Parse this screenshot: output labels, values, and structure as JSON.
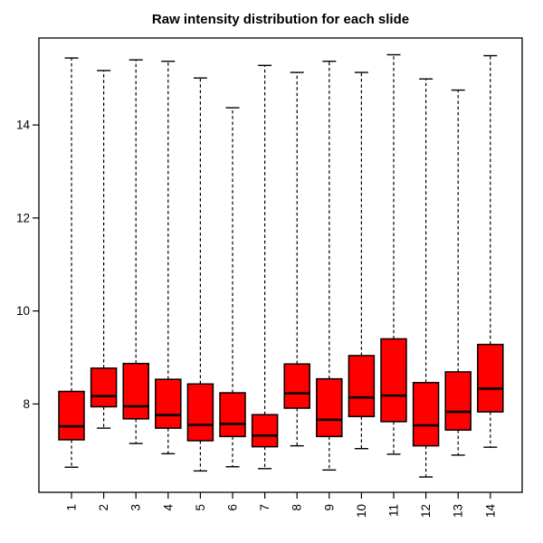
{
  "figure": {
    "background": "#FFFFFF",
    "border_color": "#000000"
  },
  "chart_data": {
    "type": "boxplot",
    "title": "Raw intensity distribution for each slide",
    "xlabel": "",
    "ylabel": "",
    "categories": [
      "1",
      "2",
      "3",
      "4",
      "5",
      "6",
      "7",
      "8",
      "9",
      "10",
      "11",
      "12",
      "13",
      "14"
    ],
    "yticks": [
      8,
      10,
      12,
      14
    ],
    "ylim": [
      6.1,
      15.87
    ],
    "grid": false,
    "legend_position": "none",
    "box_fill": "#FF0000",
    "stroke_color": "#000000",
    "whisker_style": "dashed",
    "x_label_rotation_deg": -90,
    "boxes": [
      {
        "label": "1",
        "whisker_low": 6.64,
        "q1": 7.23,
        "median": 7.52,
        "q3": 8.27,
        "whisker_high": 15.44
      },
      {
        "label": "2",
        "whisker_low": 7.48,
        "q1": 7.94,
        "median": 8.17,
        "q3": 8.77,
        "whisker_high": 15.17
      },
      {
        "label": "3",
        "whisker_low": 7.15,
        "q1": 7.68,
        "median": 7.95,
        "q3": 8.87,
        "whisker_high": 15.4
      },
      {
        "label": "4",
        "whisker_low": 6.93,
        "q1": 7.48,
        "median": 7.76,
        "q3": 8.53,
        "whisker_high": 15.37
      },
      {
        "label": "5",
        "whisker_low": 6.56,
        "q1": 7.21,
        "median": 7.55,
        "q3": 8.43,
        "whisker_high": 15.01
      },
      {
        "label": "6",
        "whisker_low": 6.65,
        "q1": 7.3,
        "median": 7.57,
        "q3": 8.24,
        "whisker_high": 14.37
      },
      {
        "label": "7",
        "whisker_low": 6.61,
        "q1": 7.08,
        "median": 7.32,
        "q3": 7.77,
        "whisker_high": 15.28
      },
      {
        "label": "8",
        "whisker_low": 7.1,
        "q1": 7.91,
        "median": 8.23,
        "q3": 8.86,
        "whisker_high": 15.13
      },
      {
        "label": "9",
        "whisker_low": 6.58,
        "q1": 7.3,
        "median": 7.66,
        "q3": 8.54,
        "whisker_high": 15.37
      },
      {
        "label": "10",
        "whisker_low": 7.04,
        "q1": 7.73,
        "median": 8.14,
        "q3": 9.04,
        "whisker_high": 15.13
      },
      {
        "label": "11",
        "whisker_low": 6.92,
        "q1": 7.62,
        "median": 8.18,
        "q3": 9.4,
        "whisker_high": 15.51
      },
      {
        "label": "12",
        "whisker_low": 6.43,
        "q1": 7.1,
        "median": 7.54,
        "q3": 8.46,
        "whisker_high": 14.99
      },
      {
        "label": "13",
        "whisker_low": 6.9,
        "q1": 7.44,
        "median": 7.83,
        "q3": 8.69,
        "whisker_high": 14.75
      },
      {
        "label": "14",
        "whisker_low": 7.07,
        "q1": 7.83,
        "median": 8.33,
        "q3": 9.28,
        "whisker_high": 15.49
      }
    ]
  }
}
